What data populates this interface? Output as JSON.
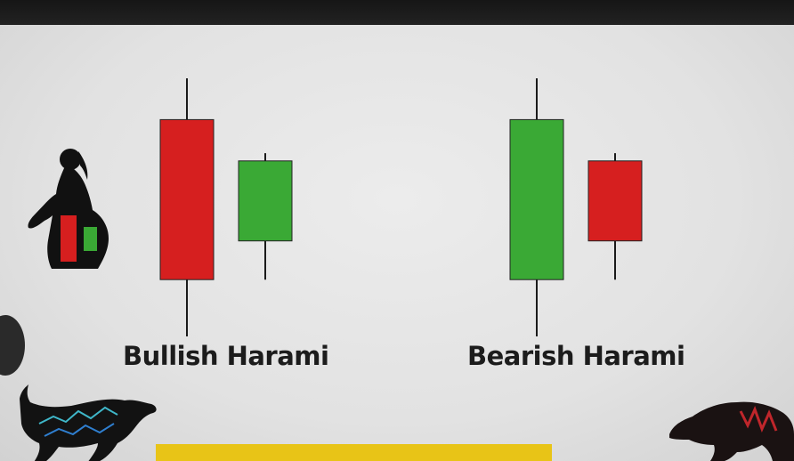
{
  "colors": {
    "bullish": "#3aa935",
    "bearish": "#d61f1f",
    "wick": "#1a1a1a",
    "banner": "#e8c417"
  },
  "patterns": [
    {
      "label": "Bullish Harami",
      "candles": [
        {
          "direction": "bearish",
          "high": 10,
          "open": 8.4,
          "close": 2.2,
          "low": 0
        },
        {
          "direction": "bullish",
          "high": 7.1,
          "open": 3.7,
          "close": 6.8,
          "low": 2.2
        }
      ]
    },
    {
      "label": "Bearish Harami",
      "candles": [
        {
          "direction": "bullish",
          "high": 10,
          "open": 2.2,
          "close": 8.4,
          "low": 0
        },
        {
          "direction": "bearish",
          "high": 7.1,
          "open": 6.8,
          "close": 3.7,
          "low": 2.2
        }
      ]
    }
  ],
  "decorations": {
    "left_icon": "pregnant-woman-silhouette-icon",
    "bottom_left": "bull-icon",
    "bottom_right": "bear-icon"
  }
}
